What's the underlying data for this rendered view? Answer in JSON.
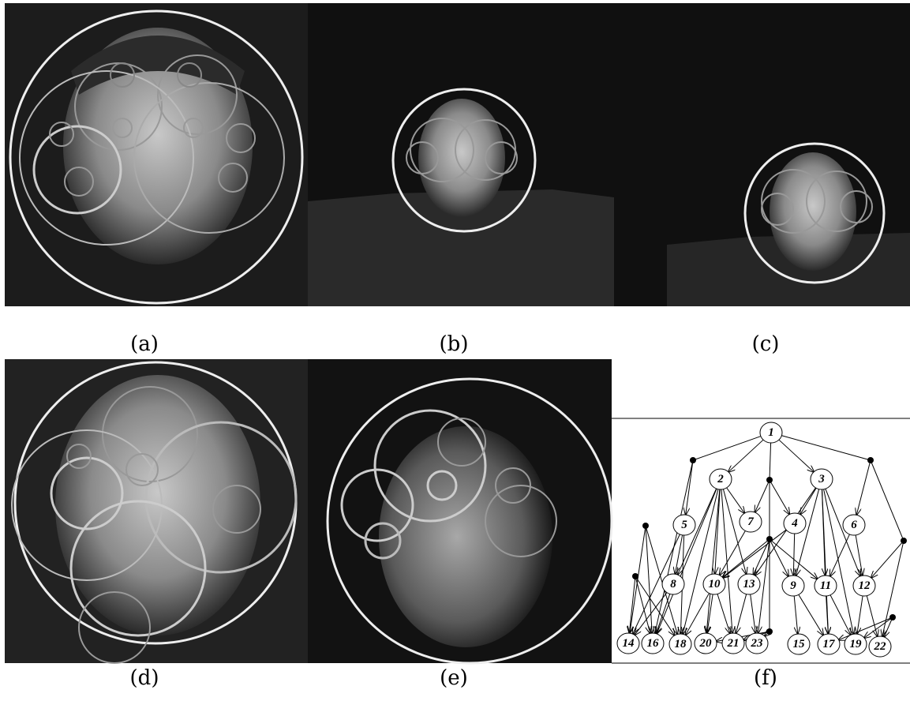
{
  "captions": [
    "(a)",
    "(b)",
    "(c)",
    "(d)",
    "(e)",
    "(f)"
  ],
  "graph": {
    "nodes": [
      "1",
      "2",
      "3",
      "4",
      "5",
      "6",
      "7",
      "8",
      "9",
      "10",
      "11",
      "12",
      "13",
      "14",
      "15",
      "16",
      "17",
      "18",
      "19",
      "20",
      "21",
      "22",
      "23"
    ]
  }
}
